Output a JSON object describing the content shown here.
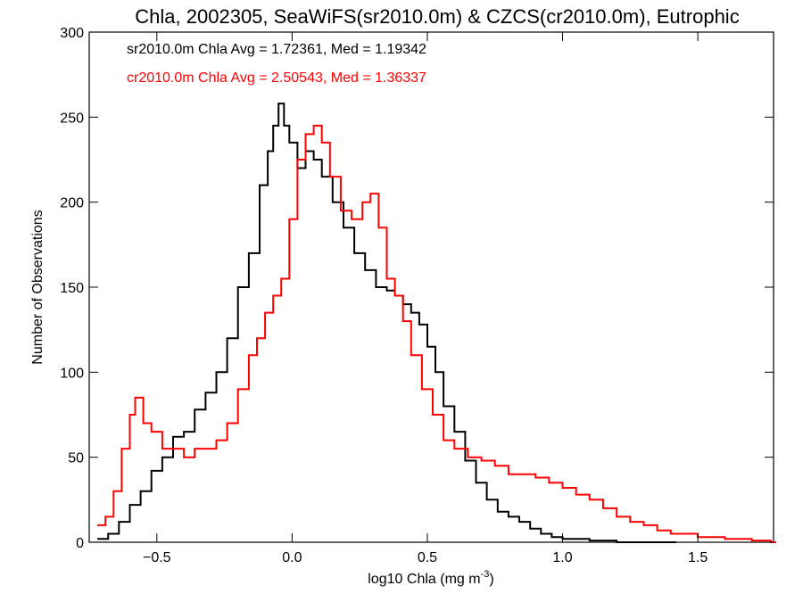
{
  "chart_data": {
    "type": "histogram",
    "title": "Chla, 2002305, SeaWiFS(sr2010.0m) & CZCS(cr2010.0m), Eutrophic",
    "xlabel_main": "log10 Chla (mg m",
    "xlabel_sup": "-3",
    "xlabel_close": ")",
    "ylabel": "Number of Observations",
    "xlim": [
      -0.75,
      1.78
    ],
    "ylim": [
      0,
      300
    ],
    "xticks": [
      -0.5,
      0.0,
      0.5,
      1.0,
      1.5
    ],
    "xtick_labels": [
      "−0.5",
      "0.0",
      "0.5",
      "1.0",
      "1.5"
    ],
    "yticks": [
      0,
      50,
      100,
      150,
      200,
      250,
      300
    ],
    "ytick_labels": [
      "0",
      "50",
      "100",
      "150",
      "200",
      "250",
      "300"
    ],
    "grid": false,
    "legend_position": "top-left",
    "series": [
      {
        "name": "sr2010.0m Chla Avg = 1.72361, Med = 1.19342",
        "color": "#000000",
        "points": [
          [
            -0.72,
            2
          ],
          [
            -0.68,
            5
          ],
          [
            -0.64,
            12
          ],
          [
            -0.6,
            22
          ],
          [
            -0.56,
            30
          ],
          [
            -0.52,
            42
          ],
          [
            -0.48,
            50
          ],
          [
            -0.44,
            62
          ],
          [
            -0.4,
            65
          ],
          [
            -0.36,
            78
          ],
          [
            -0.32,
            88
          ],
          [
            -0.28,
            100
          ],
          [
            -0.24,
            120
          ],
          [
            -0.2,
            150
          ],
          [
            -0.16,
            170
          ],
          [
            -0.12,
            210
          ],
          [
            -0.09,
            230
          ],
          [
            -0.07,
            245
          ],
          [
            -0.05,
            258
          ],
          [
            -0.03,
            245
          ],
          [
            -0.01,
            235
          ],
          [
            0.02,
            220
          ],
          [
            0.05,
            230
          ],
          [
            0.08,
            225
          ],
          [
            0.11,
            215
          ],
          [
            0.15,
            200
          ],
          [
            0.19,
            185
          ],
          [
            0.23,
            170
          ],
          [
            0.27,
            160
          ],
          [
            0.31,
            150
          ],
          [
            0.35,
            148
          ],
          [
            0.38,
            145
          ],
          [
            0.41,
            140
          ],
          [
            0.44,
            135
          ],
          [
            0.47,
            128
          ],
          [
            0.5,
            115
          ],
          [
            0.53,
            100
          ],
          [
            0.56,
            80
          ],
          [
            0.6,
            65
          ],
          [
            0.64,
            48
          ],
          [
            0.68,
            35
          ],
          [
            0.72,
            25
          ],
          [
            0.76,
            18
          ],
          [
            0.8,
            15
          ],
          [
            0.84,
            12
          ],
          [
            0.88,
            8
          ],
          [
            0.92,
            5
          ],
          [
            0.96,
            3
          ],
          [
            1.0,
            2
          ],
          [
            1.1,
            1
          ],
          [
            1.2,
            0
          ],
          [
            1.4,
            0
          ]
        ]
      },
      {
        "name": "cr2010.0m Chla Avg = 2.50543, Med = 1.36337",
        "color": "#ff0000",
        "points": [
          [
            -0.72,
            10
          ],
          [
            -0.69,
            15
          ],
          [
            -0.66,
            30
          ],
          [
            -0.63,
            55
          ],
          [
            -0.6,
            75
          ],
          [
            -0.58,
            85
          ],
          [
            -0.55,
            70
          ],
          [
            -0.52,
            65
          ],
          [
            -0.48,
            55
          ],
          [
            -0.44,
            55
          ],
          [
            -0.4,
            50
          ],
          [
            -0.36,
            55
          ],
          [
            -0.32,
            55
          ],
          [
            -0.28,
            60
          ],
          [
            -0.24,
            70
          ],
          [
            -0.2,
            90
          ],
          [
            -0.16,
            110
          ],
          [
            -0.13,
            120
          ],
          [
            -0.1,
            135
          ],
          [
            -0.07,
            145
          ],
          [
            -0.04,
            155
          ],
          [
            -0.01,
            190
          ],
          [
            0.02,
            225
          ],
          [
            0.05,
            240
          ],
          [
            0.08,
            245
          ],
          [
            0.11,
            235
          ],
          [
            0.14,
            215
          ],
          [
            0.18,
            195
          ],
          [
            0.22,
            190
          ],
          [
            0.26,
            200
          ],
          [
            0.29,
            205
          ],
          [
            0.32,
            185
          ],
          [
            0.35,
            155
          ],
          [
            0.38,
            145
          ],
          [
            0.41,
            130
          ],
          [
            0.44,
            110
          ],
          [
            0.48,
            90
          ],
          [
            0.52,
            75
          ],
          [
            0.56,
            60
          ],
          [
            0.6,
            55
          ],
          [
            0.65,
            50
          ],
          [
            0.7,
            48
          ],
          [
            0.75,
            45
          ],
          [
            0.8,
            40
          ],
          [
            0.85,
            40
          ],
          [
            0.9,
            38
          ],
          [
            0.95,
            35
          ],
          [
            1.0,
            32
          ],
          [
            1.05,
            28
          ],
          [
            1.1,
            25
          ],
          [
            1.15,
            20
          ],
          [
            1.2,
            15
          ],
          [
            1.25,
            12
          ],
          [
            1.3,
            10
          ],
          [
            1.35,
            7
          ],
          [
            1.4,
            5
          ],
          [
            1.5,
            3
          ],
          [
            1.6,
            2
          ],
          [
            1.7,
            1
          ],
          [
            1.77,
            0
          ]
        ]
      }
    ]
  }
}
